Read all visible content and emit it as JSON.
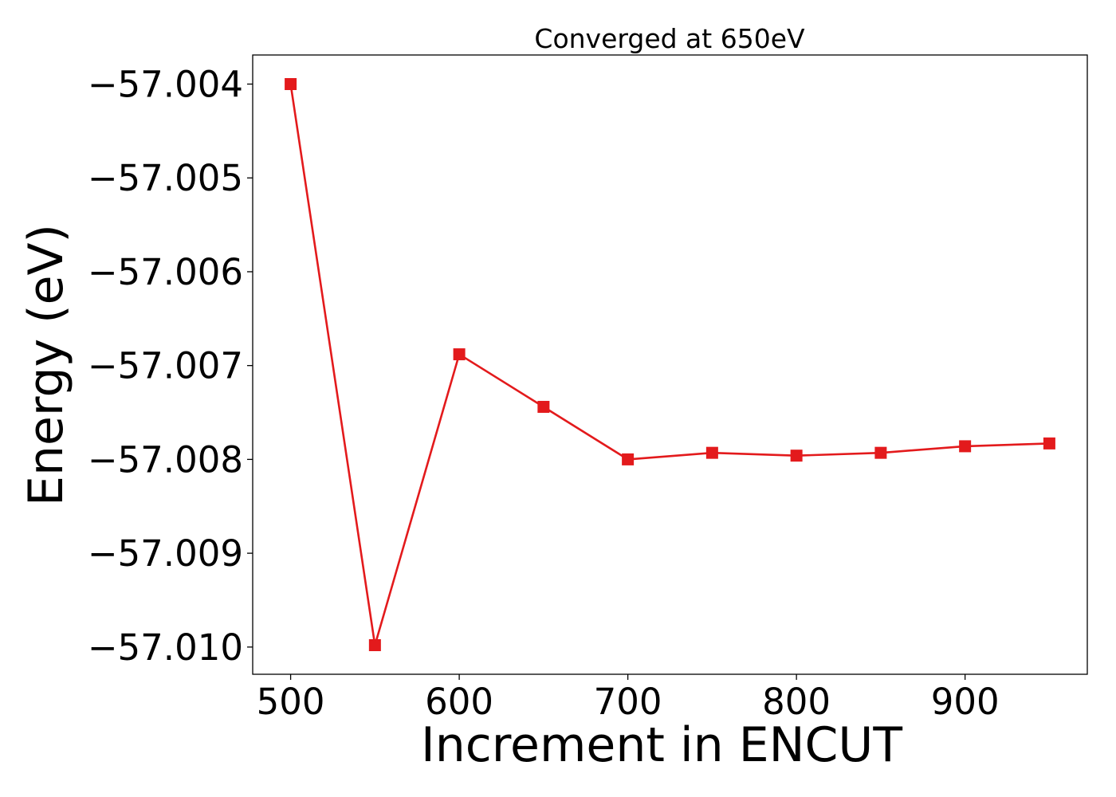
{
  "chart_data": {
    "type": "line",
    "title": "Converged at 650eV",
    "xlabel": "Increment in ENCUT",
    "ylabel": "Energy (eV)",
    "x": [
      500,
      550,
      600,
      650,
      700,
      750,
      800,
      850,
      900,
      950
    ],
    "series": [
      {
        "values": [
          -57.004,
          -57.00998,
          -57.00688,
          -57.00744,
          -57.008,
          -57.00793,
          -57.00796,
          -57.00793,
          -57.00786,
          -57.00783
        ],
        "color": "#e31a1c",
        "marker": "square"
      }
    ],
    "xlim": [
      477.5,
      972.5
    ],
    "ylim": [
      -57.01029,
      -57.00369
    ],
    "xticks": [
      500,
      600,
      700,
      800,
      900
    ],
    "xtick_labels": [
      "500",
      "600",
      "700",
      "800",
      "900"
    ],
    "yticks": [
      -57.004,
      -57.005,
      -57.006,
      -57.007,
      -57.008,
      -57.009,
      -57.01
    ],
    "ytick_labels": [
      "−57.004",
      "−57.005",
      "−57.006",
      "−57.007",
      "−57.008",
      "−57.009",
      "−57.010"
    ],
    "grid": false,
    "legend": "none"
  }
}
